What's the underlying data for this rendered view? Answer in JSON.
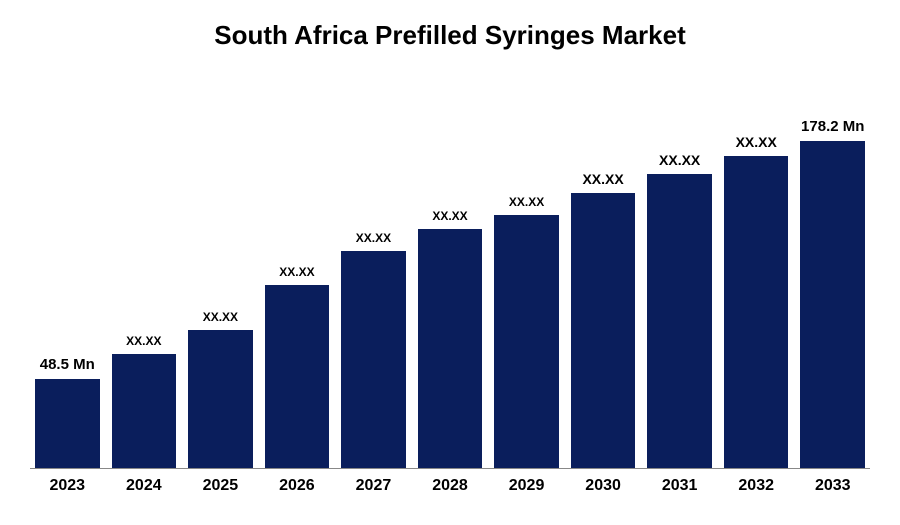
{
  "chart": {
    "type": "bar",
    "title": "South Africa Prefilled Syringes Market",
    "title_fontsize": 26,
    "title_color": "#000000",
    "background_color": "#ffffff",
    "bar_color": "#0a1e5c",
    "axis_line_color": "#888888",
    "categories": [
      "2023",
      "2024",
      "2025",
      "2026",
      "2027",
      "2028",
      "2029",
      "2030",
      "2031",
      "2032",
      "2033"
    ],
    "values": [
      48.5,
      62,
      75,
      100,
      118,
      130,
      138,
      150,
      160,
      170,
      178.2
    ],
    "value_labels": [
      "48.5 Mn",
      "XX.XX",
      "XX.XX",
      "XX.XX",
      "XX.XX",
      "XX.XX",
      "XX.XX",
      "XX.XX",
      "XX.XX",
      "XX.XX",
      "178.2 Mn"
    ],
    "label_sizes": [
      "large",
      "small",
      "small",
      "small",
      "small",
      "small",
      "small",
      "medium",
      "medium",
      "medium",
      "large"
    ],
    "ylim_max": 200,
    "x_label_fontsize": 16,
    "value_label_color": "#000000"
  }
}
